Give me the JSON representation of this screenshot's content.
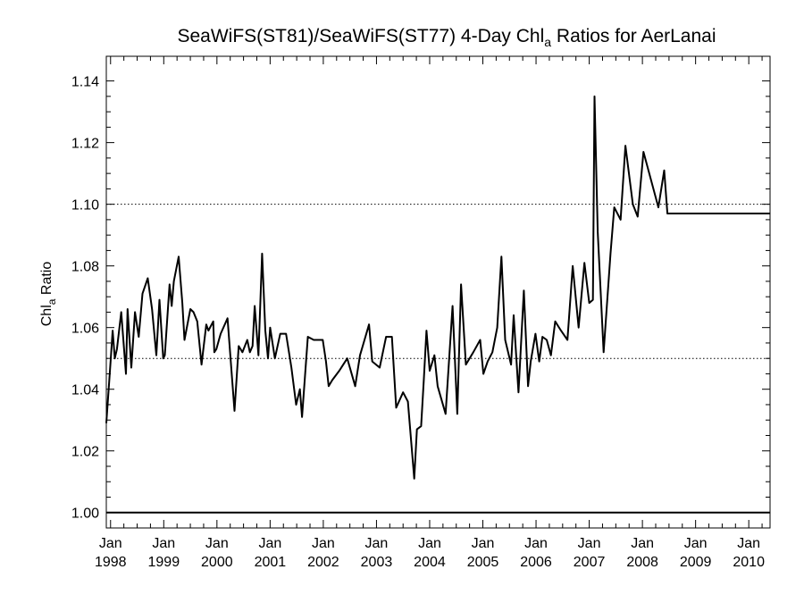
{
  "chart_data": {
    "type": "line",
    "title": {
      "prefix": "SeaWiFS(ST81)/SeaWiFS(ST77) 4-Day Chl",
      "subscript": "a",
      "suffix": " Ratios for AerLanai"
    },
    "ylabel": {
      "prefix": "Chl",
      "subscript": "a",
      "suffix": " Ratio"
    },
    "xlabel": "",
    "xlim": [
      1997.92,
      2010.4
    ],
    "ylim": [
      0.995,
      1.148
    ],
    "y_ticks": [
      {
        "value": 1.0,
        "label": "1.00"
      },
      {
        "value": 1.02,
        "label": "1.02"
      },
      {
        "value": 1.04,
        "label": "1.04"
      },
      {
        "value": 1.06,
        "label": "1.06"
      },
      {
        "value": 1.08,
        "label": "1.08"
      },
      {
        "value": 1.1,
        "label": "1.10"
      },
      {
        "value": 1.12,
        "label": "1.12"
      },
      {
        "value": 1.14,
        "label": "1.14"
      }
    ],
    "x_ticks": [
      {
        "value": 1998.0,
        "month": "Jan",
        "year": "1998"
      },
      {
        "value": 1999.0,
        "month": "Jan",
        "year": "1999"
      },
      {
        "value": 2000.0,
        "month": "Jan",
        "year": "2000"
      },
      {
        "value": 2001.0,
        "month": "Jan",
        "year": "2001"
      },
      {
        "value": 2002.0,
        "month": "Jan",
        "year": "2002"
      },
      {
        "value": 2003.0,
        "month": "Jan",
        "year": "2003"
      },
      {
        "value": 2004.0,
        "month": "Jan",
        "year": "2004"
      },
      {
        "value": 2005.0,
        "month": "Jan",
        "year": "2005"
      },
      {
        "value": 2006.0,
        "month": "Jan",
        "year": "2006"
      },
      {
        "value": 2007.0,
        "month": "Jan",
        "year": "2007"
      },
      {
        "value": 2008.0,
        "month": "Jan",
        "year": "2008"
      },
      {
        "value": 2009.0,
        "month": "Jan",
        "year": "2009"
      },
      {
        "value": 2010.0,
        "month": "Jan",
        "year": "2010"
      }
    ],
    "reference_lines": [
      {
        "y": 1.0,
        "style": "solid"
      },
      {
        "y": 1.05,
        "style": "dotted"
      },
      {
        "y": 1.1,
        "style": "dotted"
      }
    ],
    "grid": false,
    "series": [
      {
        "x": [
          1997.92,
          1998.0,
          1998.04,
          1998.08,
          1998.12,
          1998.2,
          1998.29,
          1998.32,
          1998.39,
          1998.46,
          1998.53,
          1998.6,
          1998.7,
          1998.78,
          1998.86,
          1998.92,
          1998.99,
          1999.02,
          1999.11,
          1999.15,
          1999.19,
          1999.28,
          1999.35,
          1999.39,
          1999.5,
          1999.56,
          1999.63,
          1999.71,
          1999.8,
          1999.84,
          1999.93,
          1999.95,
          1999.99,
          2000.07,
          2000.2,
          2000.33,
          2000.41,
          2000.48,
          2000.57,
          2000.62,
          2000.67,
          2000.71,
          2000.78,
          2000.85,
          2000.91,
          2000.96,
          2001.0,
          2001.09,
          2001.19,
          2001.3,
          2001.4,
          2001.49,
          2001.56,
          2001.6,
          2001.71,
          2001.82,
          2001.91,
          2001.99,
          2002.05,
          2002.1,
          2002.17,
          2002.3,
          2002.45,
          2002.6,
          2002.69,
          2002.86,
          2002.92,
          2003.06,
          2003.18,
          2003.29,
          2003.37,
          2003.5,
          2003.59,
          2003.71,
          2003.76,
          2003.84,
          2003.89,
          2003.94,
          2004.0,
          2004.09,
          2004.15,
          2004.3,
          2004.43,
          2004.52,
          2004.59,
          2004.68,
          2004.82,
          2004.95,
          2005.01,
          2005.09,
          2005.18,
          2005.27,
          2005.35,
          2005.42,
          2005.53,
          2005.58,
          2005.67,
          2005.77,
          2005.85,
          2005.9,
          2005.99,
          2006.06,
          2006.12,
          2006.2,
          2006.28,
          2006.36,
          2006.47,
          2006.59,
          2006.69,
          2006.8,
          2006.91,
          2007.0,
          2007.07,
          2007.1,
          2007.16,
          2007.27,
          2007.4,
          2007.47,
          2007.59,
          2007.68,
          2007.82,
          2007.91,
          2008.02,
          2008.3,
          2008.41,
          2008.47,
          2008.74,
          2008.91,
          2009.68,
          2009.93,
          2009.98,
          2010.02,
          2010.08,
          2010.18,
          2010.24,
          2010.3,
          2010.35,
          2010.4
        ],
        "y": [
          1.029,
          1.049,
          1.059,
          1.05,
          1.053,
          1.065,
          1.045,
          1.066,
          1.047,
          1.065,
          1.057,
          1.071,
          1.076,
          1.066,
          1.051,
          1.069,
          1.05,
          1.051,
          1.074,
          1.067,
          1.075,
          1.083,
          1.068,
          1.056,
          1.066,
          1.065,
          1.062,
          1.048,
          1.061,
          1.059,
          1.062,
          1.052,
          1.053,
          1.058,
          1.063,
          1.033,
          1.054,
          1.052,
          1.056,
          1.052,
          1.054,
          1.067,
          1.051,
          1.084,
          1.059,
          1.05,
          1.06,
          1.05,
          1.058,
          1.058,
          1.047,
          1.035,
          1.04,
          1.031,
          1.057,
          1.056,
          1.056,
          1.056,
          1.049,
          1.041,
          1.043,
          1.046,
          1.05,
          1.041,
          1.051,
          1.061,
          1.049,
          1.047,
          1.057,
          1.057,
          1.034,
          1.039,
          1.036,
          1.011,
          1.027,
          1.028,
          1.043,
          1.059,
          1.046,
          1.051,
          1.041,
          1.032,
          1.067,
          1.032,
          1.074,
          1.048,
          1.052,
          1.056,
          1.045,
          1.049,
          1.052,
          1.06,
          1.083,
          1.056,
          1.048,
          1.064,
          1.039,
          1.072,
          1.041,
          1.049,
          1.058,
          1.049,
          1.057,
          1.056,
          1.051,
          1.062,
          1.059,
          1.056,
          1.08,
          1.06,
          1.081,
          1.068,
          1.069,
          1.135,
          1.091,
          1.052,
          1.084,
          1.099,
          1.095,
          1.119,
          1.1,
          1.096,
          1.117,
          1.099,
          1.111,
          1.097,
          1.097,
          1.097,
          1.097,
          1.097,
          1.097,
          1.097,
          1.097,
          1.097,
          1.097,
          1.097,
          1.097,
          1.097
        ]
      }
    ]
  }
}
